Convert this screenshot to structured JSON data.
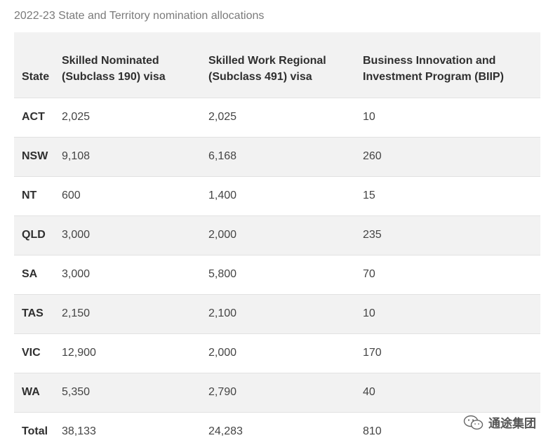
{
  "caption": "2022-23 State and Territory nomination allocations",
  "table": {
    "headers": {
      "state": "State",
      "subclass190_line1": "Skilled Nominated",
      "subclass190_line2": "(Subclass 190) visa",
      "subclass491_line1": "Skilled Work Regional",
      "subclass491_line2": "(Subclass 491) visa",
      "biip_line1": "Business Innovation and",
      "biip_line2": "Investment Program (BIIP)"
    },
    "rows": [
      {
        "state": "ACT",
        "subclass190": "2,025",
        "subclass491": "2,025",
        "biip": "10"
      },
      {
        "state": "NSW",
        "subclass190": "9,108",
        "subclass491": "6,168",
        "biip": "260"
      },
      {
        "state": "NT",
        "subclass190": "600",
        "subclass491": "1,400",
        "biip": "15"
      },
      {
        "state": "QLD",
        "subclass190": "3,000",
        "subclass491": "2,000",
        "biip": "235"
      },
      {
        "state": "SA",
        "subclass190": "3,000",
        "subclass491": "5,800",
        "biip": "70"
      },
      {
        "state": "TAS",
        "subclass190": "2,150",
        "subclass491": "2,100",
        "biip": "10"
      },
      {
        "state": "VIC",
        "subclass190": "12,900",
        "subclass491": "2,000",
        "biip": "170"
      },
      {
        "state": "WA",
        "subclass190": "5,350",
        "subclass491": "2,790",
        "biip": "40"
      },
      {
        "state": "Total",
        "subclass190": "38,133",
        "subclass491": "24,283",
        "biip": "810"
      }
    ]
  },
  "watermark": {
    "text": "通途集团",
    "icon": "wechat-icon"
  }
}
